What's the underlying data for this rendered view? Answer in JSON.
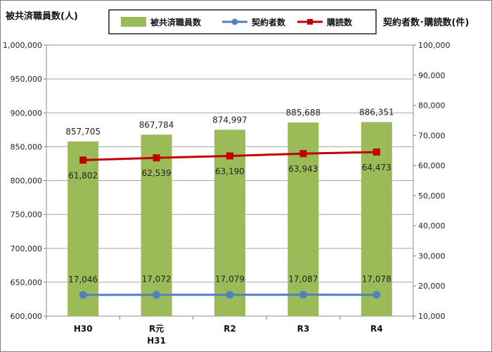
{
  "chart_data": {
    "type": "bar",
    "title_left": "被共済職員数(人)",
    "title_right": "契約者数･購読数(件)",
    "categories": [
      "H30",
      "R元\nH31",
      "R2",
      "R3",
      "R4"
    ],
    "y_left": {
      "min": 600000,
      "max": 1000000,
      "step": 50000
    },
    "y_right": {
      "min": 10000,
      "max": 100000,
      "step": 10000
    },
    "grid": true,
    "legend_position": "top",
    "series": [
      {
        "name": "被共済職員数",
        "type": "bar",
        "axis": "left",
        "color": "#9bbb59",
        "values": [
          857705,
          867784,
          874997,
          885688,
          886351
        ]
      },
      {
        "name": "契約者数",
        "type": "line",
        "axis": "right",
        "color": "#4f81bd",
        "values": [
          17046,
          17072,
          17079,
          17087,
          17078
        ]
      },
      {
        "name": "購読数",
        "type": "line",
        "axis": "right",
        "color": "#c00000",
        "values": [
          61802,
          62539,
          63190,
          63943,
          64473
        ]
      }
    ]
  }
}
